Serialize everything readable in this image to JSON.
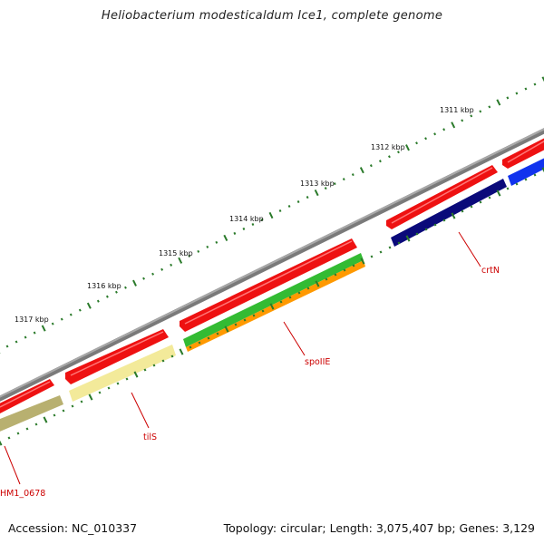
{
  "title": "Heliobacterium modesticaldum Ice1, complete genome",
  "accession": "Accession: NC_010337",
  "summary": "Topology: circular; Length: 3,075,407 bp; Genes: 3,129",
  "kbp_labels": [
    "1311 kbp",
    "1312 kbp",
    "1313 kbp",
    "1314 kbp",
    "1315 kbp",
    "1316 kbp",
    "1317 kbp"
  ],
  "gene_labels": [
    "crtN",
    "spoIIE",
    "tilS",
    "HM1_0678"
  ],
  "colors": {
    "backbone": "#7a7a7a",
    "forward_genes": "#ee1111",
    "crtN": "#0a0a7a",
    "blue_gene": "#1133ee",
    "green_gene": "#33bb33",
    "orange_gene": "#ff9900",
    "tilS": "#f3ea9a",
    "HM1_0678": "#b8b070",
    "ticks": "#2a7a2a",
    "label_text": "#cc0000"
  }
}
